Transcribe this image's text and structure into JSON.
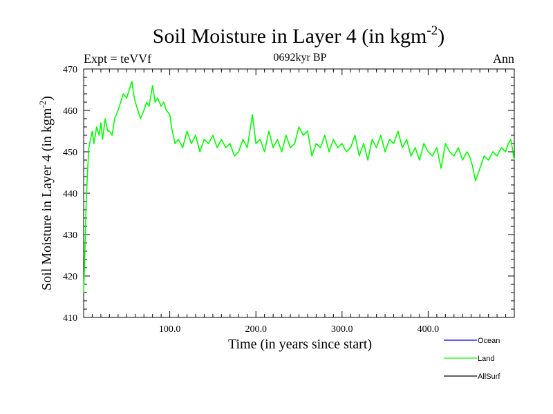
{
  "chart_data": {
    "type": "line",
    "title": "Soil Moisture in Layer 4 (in kgm",
    "title_sup": "-2",
    "title_close": ")",
    "subtitle": "0692kyr BP",
    "left_label": "Expt = teVVf",
    "right_label": "Ann",
    "xlabel": "Time (in years since start)",
    "ylabel": "Soil Moisture in Layer 4 (in kgm",
    "ylabel_sup": "-2",
    "ylabel_close": ")",
    "xlim": [
      0,
      500
    ],
    "ylim": [
      410,
      470
    ],
    "x_major_ticks": [
      100,
      200,
      300,
      400
    ],
    "x_tick_labels": [
      "100.0",
      "200.0",
      "300.0",
      "400.0"
    ],
    "x_minor_step": 10,
    "y_major_ticks": [
      410,
      420,
      430,
      440,
      450,
      460,
      470
    ],
    "y_tick_labels": [
      "410",
      "420",
      "430",
      "440",
      "450",
      "460",
      "470"
    ],
    "y_minor_step": 2,
    "legend": [
      {
        "name": "Ocean",
        "color": "#0000ff"
      },
      {
        "name": "Land",
        "color": "#00ff00"
      },
      {
        "name": "AllSurf",
        "color": "#000000"
      }
    ],
    "series": [
      {
        "name": "Land",
        "color": "#00ff00",
        "x": [
          0,
          1,
          2,
          3,
          4,
          5,
          6,
          8,
          10,
          12,
          15,
          18,
          20,
          22,
          25,
          28,
          30,
          33,
          36,
          40,
          43,
          46,
          50,
          53,
          56,
          58,
          60,
          63,
          66,
          70,
          73,
          76,
          80,
          83,
          86,
          90,
          93,
          96,
          100,
          102,
          104,
          106,
          110,
          115,
          120,
          125,
          130,
          135,
          140,
          145,
          150,
          155,
          160,
          165,
          170,
          175,
          180,
          185,
          190,
          193,
          196,
          200,
          205,
          210,
          215,
          220,
          225,
          230,
          235,
          240,
          245,
          250,
          255,
          260,
          265,
          270,
          275,
          280,
          285,
          290,
          295,
          300,
          305,
          310,
          315,
          320,
          325,
          330,
          335,
          340,
          345,
          350,
          355,
          360,
          365,
          370,
          375,
          380,
          385,
          390,
          395,
          400,
          405,
          410,
          415,
          420,
          425,
          430,
          435,
          440,
          445,
          448,
          451,
          455,
          460,
          465,
          470,
          475,
          480,
          485,
          490,
          493,
          496,
          500
        ],
        "y": [
          416,
          422,
          430,
          438,
          443,
          447,
          451,
          453,
          455,
          452,
          456,
          454,
          457,
          453,
          458,
          455,
          455,
          454,
          458,
          460,
          462,
          464,
          463,
          465,
          467,
          464,
          462,
          460,
          458,
          460,
          462,
          461,
          466,
          462,
          463,
          461,
          462,
          460,
          459,
          456,
          454,
          452,
          453,
          451,
          455,
          452,
          454,
          450,
          453,
          452,
          454,
          451,
          453,
          451,
          452,
          449,
          450,
          453,
          451,
          455,
          459,
          452,
          453,
          450,
          455,
          451,
          453,
          450,
          454,
          451,
          452,
          456,
          454,
          455,
          449,
          452,
          451,
          454,
          450,
          453,
          451,
          452,
          450,
          451,
          454,
          449,
          452,
          448,
          453,
          451,
          454,
          450,
          453,
          452,
          455,
          451,
          453,
          449,
          451,
          448,
          452,
          450,
          449,
          451,
          446,
          452,
          450,
          449,
          451,
          448,
          450,
          449,
          447,
          443,
          446,
          449,
          448,
          450,
          449,
          451,
          450,
          452,
          453,
          448
        ]
      }
    ]
  }
}
